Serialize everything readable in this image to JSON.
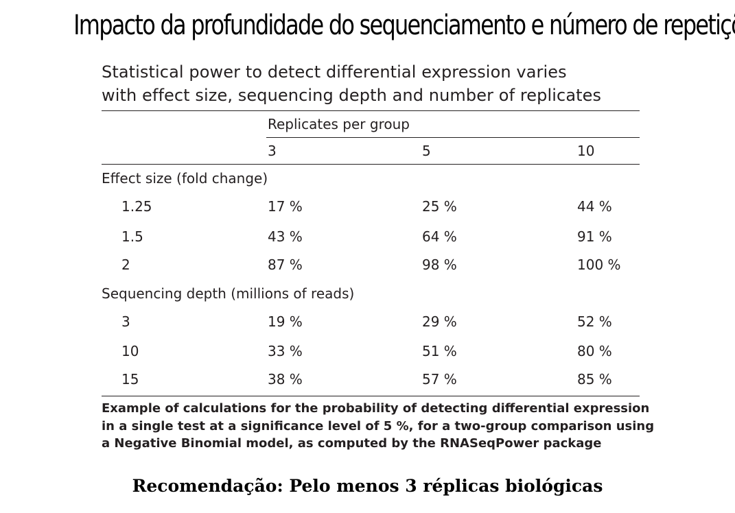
{
  "slide": {
    "title": "Impacto da profundidade do sequenciamento e número de repetições",
    "recommendation": "Recomendação: Pelo menos 3 réplicas biológicas"
  },
  "figure": {
    "title_line_1": "Statistical power to detect differential expression varies",
    "title_line_2": "with effect size, sequencing depth and number of replicates",
    "table": {
      "group_header": "Replicates per group",
      "columns": [
        "3",
        "5",
        "10"
      ],
      "sections": [
        {
          "label": "Effect size (fold change)",
          "rows": [
            {
              "label": "1.25",
              "values": [
                "17 %",
                "25 %",
                "44 %"
              ]
            },
            {
              "label": "1.5",
              "values": [
                "43 %",
                "64 %",
                "91 %"
              ]
            },
            {
              "label": "2",
              "values": [
                "87 %",
                "98 %",
                "100 %"
              ]
            }
          ]
        },
        {
          "label": "Sequencing depth (millions of reads)",
          "rows": [
            {
              "label": "3",
              "values": [
                "19 %",
                "29 %",
                "52 %"
              ]
            },
            {
              "label": "10",
              "values": [
                "33 %",
                "51 %",
                "80 %"
              ]
            },
            {
              "label": "15",
              "values": [
                "38 %",
                "57 %",
                "85 %"
              ]
            }
          ]
        }
      ]
    },
    "caption_lines": [
      "Example of calculations for the probability of detecting differential expression",
      "in a single test at a significance level of 5 %, for a two-group comparison using",
      "a Negative Binomial model, as computed by the RNASeqPower package"
    ]
  }
}
